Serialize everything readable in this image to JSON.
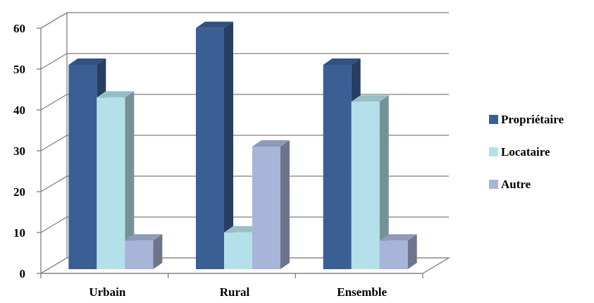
{
  "chart_data": {
    "type": "bar",
    "style": "3d-clustered-column",
    "categories": [
      "Urbain",
      "Rural",
      "Ensemble"
    ],
    "series": [
      {
        "name": "Propriétaire",
        "values": [
          50,
          59,
          50
        ],
        "color": "#3A5F95"
      },
      {
        "name": "Locataire",
        "values": [
          42,
          9,
          41
        ],
        "color": "#B4E1E9"
      },
      {
        "name": "Autre",
        "values": [
          7,
          30,
          7
        ],
        "color": "#A8B4D8"
      }
    ],
    "ylim": [
      0,
      60
    ],
    "yticks": [
      0,
      10,
      20,
      30,
      40,
      50,
      60
    ],
    "grid": true,
    "legend_position": "right",
    "title": "",
    "xlabel": "",
    "ylabel": ""
  }
}
